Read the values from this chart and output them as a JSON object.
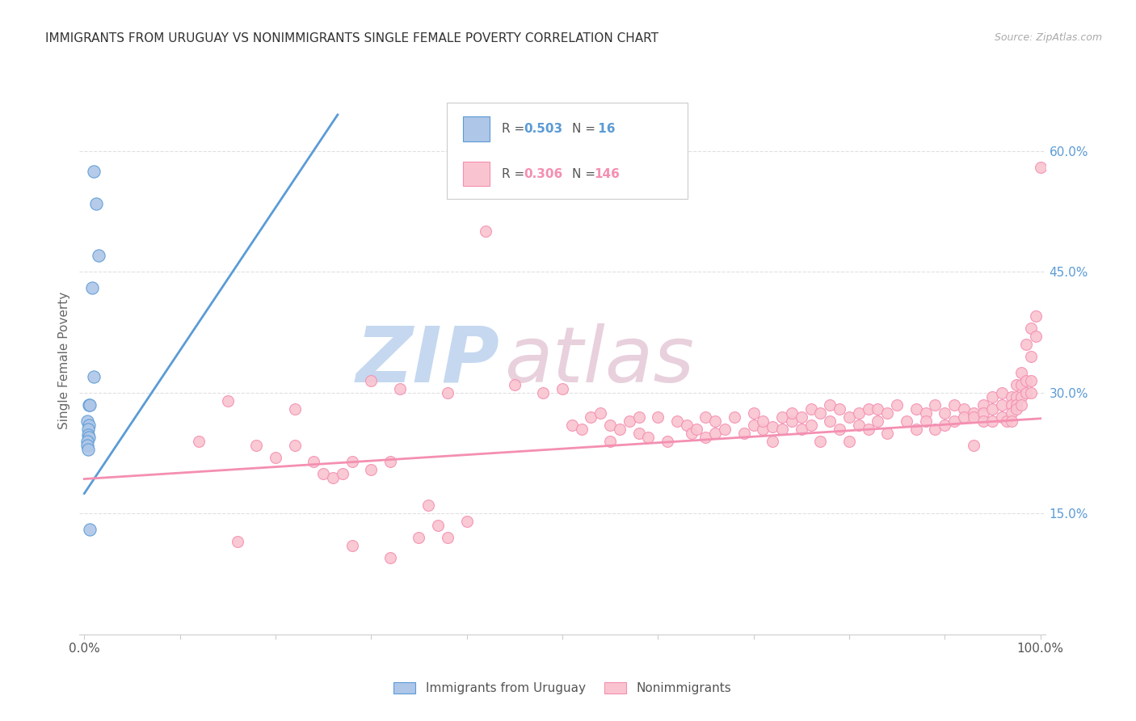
{
  "title": "IMMIGRANTS FROM URUGUAY VS NONIMMIGRANTS SINGLE FEMALE POVERTY CORRELATION CHART",
  "source": "Source: ZipAtlas.com",
  "ylabel": "Single Female Poverty",
  "y_tick_labels_right": [
    "15.0%",
    "30.0%",
    "45.0%",
    "60.0%"
  ],
  "legend_entries": [
    {
      "label": "Immigrants from Uruguay",
      "color": "#a8c4e0"
    },
    {
      "label": "Nonimmigrants",
      "color": "#f4a0b0"
    }
  ],
  "blue_color": "#5b9bd5",
  "pink_color": "#f48fb1",
  "blue_scatter_color": "#aec6e8",
  "pink_scatter_color": "#f9c4d0",
  "background_color": "#ffffff",
  "watermark_color": "#ccd9ee",
  "grid_color": "#e0e0e0",
  "blue_scatter_points": [
    [
      0.01,
      0.575
    ],
    [
      0.012,
      0.535
    ],
    [
      0.015,
      0.47
    ],
    [
      0.008,
      0.43
    ],
    [
      0.01,
      0.32
    ],
    [
      0.005,
      0.285
    ],
    [
      0.006,
      0.285
    ],
    [
      0.003,
      0.265
    ],
    [
      0.005,
      0.26
    ],
    [
      0.004,
      0.255
    ],
    [
      0.004,
      0.248
    ],
    [
      0.005,
      0.245
    ],
    [
      0.003,
      0.24
    ],
    [
      0.003,
      0.235
    ],
    [
      0.004,
      0.23
    ],
    [
      0.006,
      0.13
    ]
  ],
  "pink_scatter_points": [
    [
      0.42,
      0.5
    ],
    [
      0.15,
      0.29
    ],
    [
      0.22,
      0.28
    ],
    [
      0.3,
      0.315
    ],
    [
      0.33,
      0.305
    ],
    [
      0.38,
      0.3
    ],
    [
      0.45,
      0.31
    ],
    [
      0.48,
      0.3
    ],
    [
      0.5,
      0.305
    ],
    [
      0.51,
      0.26
    ],
    [
      0.52,
      0.255
    ],
    [
      0.53,
      0.27
    ],
    [
      0.54,
      0.275
    ],
    [
      0.55,
      0.24
    ],
    [
      0.55,
      0.26
    ],
    [
      0.56,
      0.255
    ],
    [
      0.57,
      0.265
    ],
    [
      0.58,
      0.25
    ],
    [
      0.58,
      0.27
    ],
    [
      0.59,
      0.245
    ],
    [
      0.6,
      0.27
    ],
    [
      0.61,
      0.24
    ],
    [
      0.62,
      0.265
    ],
    [
      0.63,
      0.26
    ],
    [
      0.635,
      0.25
    ],
    [
      0.64,
      0.255
    ],
    [
      0.65,
      0.27
    ],
    [
      0.65,
      0.245
    ],
    [
      0.66,
      0.25
    ],
    [
      0.66,
      0.265
    ],
    [
      0.67,
      0.255
    ],
    [
      0.68,
      0.27
    ],
    [
      0.69,
      0.25
    ],
    [
      0.7,
      0.26
    ],
    [
      0.7,
      0.275
    ],
    [
      0.71,
      0.255
    ],
    [
      0.71,
      0.265
    ],
    [
      0.72,
      0.24
    ],
    [
      0.72,
      0.258
    ],
    [
      0.73,
      0.255
    ],
    [
      0.73,
      0.27
    ],
    [
      0.74,
      0.265
    ],
    [
      0.74,
      0.275
    ],
    [
      0.75,
      0.27
    ],
    [
      0.75,
      0.255
    ],
    [
      0.76,
      0.26
    ],
    [
      0.76,
      0.28
    ],
    [
      0.77,
      0.24
    ],
    [
      0.77,
      0.275
    ],
    [
      0.78,
      0.285
    ],
    [
      0.78,
      0.265
    ],
    [
      0.79,
      0.28
    ],
    [
      0.79,
      0.255
    ],
    [
      0.8,
      0.24
    ],
    [
      0.8,
      0.27
    ],
    [
      0.81,
      0.26
    ],
    [
      0.81,
      0.275
    ],
    [
      0.82,
      0.28
    ],
    [
      0.82,
      0.255
    ],
    [
      0.83,
      0.265
    ],
    [
      0.83,
      0.28
    ],
    [
      0.84,
      0.25
    ],
    [
      0.84,
      0.275
    ],
    [
      0.85,
      0.285
    ],
    [
      0.86,
      0.265
    ],
    [
      0.87,
      0.255
    ],
    [
      0.87,
      0.28
    ],
    [
      0.88,
      0.275
    ],
    [
      0.88,
      0.265
    ],
    [
      0.89,
      0.285
    ],
    [
      0.89,
      0.255
    ],
    [
      0.9,
      0.275
    ],
    [
      0.9,
      0.26
    ],
    [
      0.91,
      0.285
    ],
    [
      0.91,
      0.265
    ],
    [
      0.92,
      0.28
    ],
    [
      0.92,
      0.27
    ],
    [
      0.93,
      0.275
    ],
    [
      0.93,
      0.27
    ],
    [
      0.93,
      0.235
    ],
    [
      0.94,
      0.285
    ],
    [
      0.94,
      0.275
    ],
    [
      0.94,
      0.265
    ],
    [
      0.95,
      0.295
    ],
    [
      0.95,
      0.28
    ],
    [
      0.95,
      0.265
    ],
    [
      0.96,
      0.3
    ],
    [
      0.96,
      0.285
    ],
    [
      0.96,
      0.27
    ],
    [
      0.965,
      0.265
    ],
    [
      0.97,
      0.295
    ],
    [
      0.97,
      0.285
    ],
    [
      0.97,
      0.275
    ],
    [
      0.97,
      0.265
    ],
    [
      0.975,
      0.31
    ],
    [
      0.975,
      0.295
    ],
    [
      0.975,
      0.285
    ],
    [
      0.975,
      0.28
    ],
    [
      0.98,
      0.325
    ],
    [
      0.98,
      0.31
    ],
    [
      0.98,
      0.295
    ],
    [
      0.98,
      0.285
    ],
    [
      0.985,
      0.36
    ],
    [
      0.985,
      0.315
    ],
    [
      0.985,
      0.3
    ],
    [
      0.99,
      0.38
    ],
    [
      0.99,
      0.345
    ],
    [
      0.99,
      0.315
    ],
    [
      0.99,
      0.3
    ],
    [
      0.995,
      0.395
    ],
    [
      0.995,
      0.37
    ],
    [
      1.0,
      0.58
    ],
    [
      0.12,
      0.24
    ],
    [
      0.18,
      0.235
    ],
    [
      0.2,
      0.22
    ],
    [
      0.22,
      0.235
    ],
    [
      0.24,
      0.215
    ],
    [
      0.25,
      0.2
    ],
    [
      0.26,
      0.195
    ],
    [
      0.27,
      0.2
    ],
    [
      0.28,
      0.215
    ],
    [
      0.3,
      0.205
    ],
    [
      0.32,
      0.215
    ],
    [
      0.35,
      0.12
    ],
    [
      0.36,
      0.16
    ],
    [
      0.37,
      0.135
    ],
    [
      0.38,
      0.12
    ],
    [
      0.4,
      0.14
    ],
    [
      0.16,
      0.115
    ],
    [
      0.28,
      0.11
    ],
    [
      0.32,
      0.095
    ]
  ],
  "blue_trend_x": [
    0.0,
    0.265
  ],
  "blue_trend_y": [
    0.175,
    0.645
  ],
  "pink_trend_x": [
    0.0,
    1.0
  ],
  "pink_trend_y": [
    0.193,
    0.268
  ],
  "xlim": [
    -0.005,
    1.005
  ],
  "ylim": [
    0.0,
    0.68
  ],
  "ytick_positions": [
    0.15,
    0.3,
    0.45,
    0.6
  ],
  "figsize": [
    14.06,
    8.92
  ],
  "dpi": 100
}
